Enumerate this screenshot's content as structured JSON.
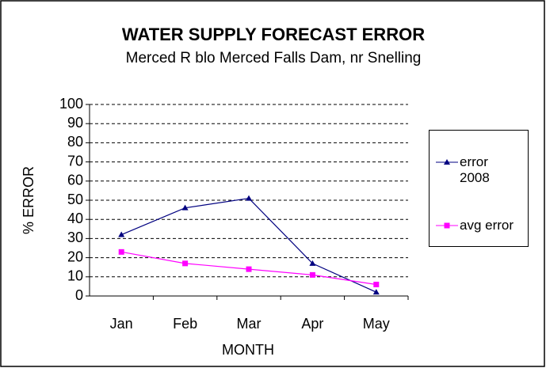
{
  "chart_data": {
    "type": "line",
    "title": "WATER SUPPLY FORECAST ERROR",
    "subtitle": "Merced R blo Merced Falls Dam, nr Snelling",
    "x_label": "MONTH",
    "y_label": "% ERROR",
    "categories": [
      "Jan",
      "Feb",
      "Mar",
      "Apr",
      "May"
    ],
    "series": [
      {
        "name": "error 2008",
        "color": "#000080",
        "marker": "triangle",
        "values": [
          32,
          46,
          51,
          17,
          2
        ]
      },
      {
        "name": "avg error",
        "color": "#ff00ff",
        "marker": "square",
        "values": [
          23,
          17,
          14,
          11,
          6
        ]
      }
    ],
    "ylim": [
      0,
      100
    ],
    "yticks": [
      0,
      10,
      20,
      30,
      40,
      50,
      60,
      70,
      80,
      90,
      100
    ],
    "grid": true,
    "legend": "right"
  }
}
